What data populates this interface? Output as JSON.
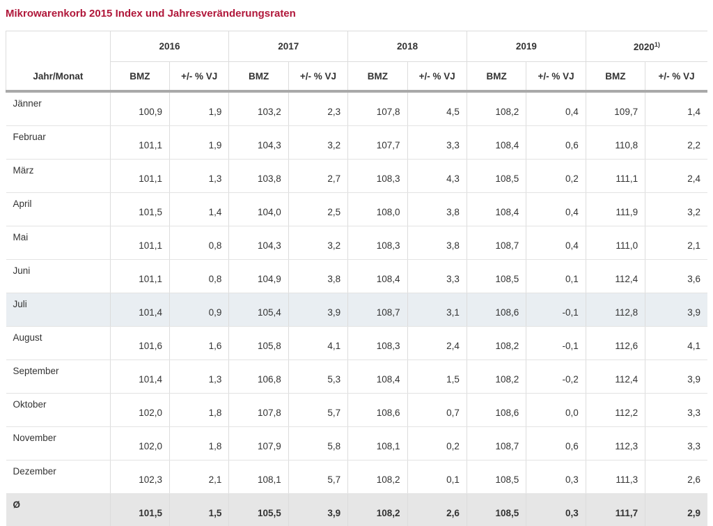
{
  "title": "Mikrowarenkorb 2015 Index und Jahresveränderungsraten",
  "header": {
    "corner": "Jahr/Monat",
    "years": [
      {
        "label": "2016",
        "sup": ""
      },
      {
        "label": "2017",
        "sup": ""
      },
      {
        "label": "2018",
        "sup": ""
      },
      {
        "label": "2019",
        "sup": ""
      },
      {
        "label": "2020",
        "sup": "1)"
      }
    ],
    "col_bmz": "BMZ",
    "col_change": "+/- % VJ"
  },
  "rows": [
    {
      "month": "Jänner",
      "values": [
        "100,9",
        "1,9",
        "103,2",
        "2,3",
        "107,8",
        "4,5",
        "108,2",
        "0,4",
        "109,7",
        "1,4"
      ]
    },
    {
      "month": "Februar",
      "values": [
        "101,1",
        "1,9",
        "104,3",
        "3,2",
        "107,7",
        "3,3",
        "108,4",
        "0,6",
        "110,8",
        "2,2"
      ]
    },
    {
      "month": "März",
      "values": [
        "101,1",
        "1,3",
        "103,8",
        "2,7",
        "108,3",
        "4,3",
        "108,5",
        "0,2",
        "111,1",
        "2,4"
      ]
    },
    {
      "month": "April",
      "values": [
        "101,5",
        "1,4",
        "104,0",
        "2,5",
        "108,0",
        "3,8",
        "108,4",
        "0,4",
        "111,9",
        "3,2"
      ]
    },
    {
      "month": "Mai",
      "values": [
        "101,1",
        "0,8",
        "104,3",
        "3,2",
        "108,3",
        "3,8",
        "108,7",
        "0,4",
        "111,0",
        "2,1"
      ]
    },
    {
      "month": "Juni",
      "values": [
        "101,1",
        "0,8",
        "104,9",
        "3,8",
        "108,4",
        "3,3",
        "108,5",
        "0,1",
        "112,4",
        "3,6"
      ]
    },
    {
      "month": "Juli",
      "values": [
        "101,4",
        "0,9",
        "105,4",
        "3,9",
        "108,7",
        "3,1",
        "108,6",
        "-0,1",
        "112,8",
        "3,9"
      ]
    },
    {
      "month": "August",
      "values": [
        "101,6",
        "1,6",
        "105,8",
        "4,1",
        "108,3",
        "2,4",
        "108,2",
        "-0,1",
        "112,6",
        "4,1"
      ]
    },
    {
      "month": "September",
      "values": [
        "101,4",
        "1,3",
        "106,8",
        "5,3",
        "108,4",
        "1,5",
        "108,2",
        "-0,2",
        "112,4",
        "3,9"
      ]
    },
    {
      "month": "Oktober",
      "values": [
        "102,0",
        "1,8",
        "107,8",
        "5,7",
        "108,6",
        "0,7",
        "108,6",
        "0,0",
        "112,2",
        "3,3"
      ]
    },
    {
      "month": "November",
      "values": [
        "102,0",
        "1,8",
        "107,9",
        "5,8",
        "108,1",
        "0,2",
        "108,7",
        "0,6",
        "112,3",
        "3,3"
      ]
    },
    {
      "month": "Dezember",
      "values": [
        "102,3",
        "2,1",
        "108,1",
        "5,7",
        "108,2",
        "0,1",
        "108,5",
        "0,3",
        "111,3",
        "2,6"
      ]
    }
  ],
  "average": {
    "month": "Ø",
    "values": [
      "101,5",
      "1,5",
      "105,5",
      "3,9",
      "108,2",
      "2,6",
      "108,5",
      "0,3",
      "111,7",
      "2,9"
    ]
  },
  "highlight_row": 6
}
